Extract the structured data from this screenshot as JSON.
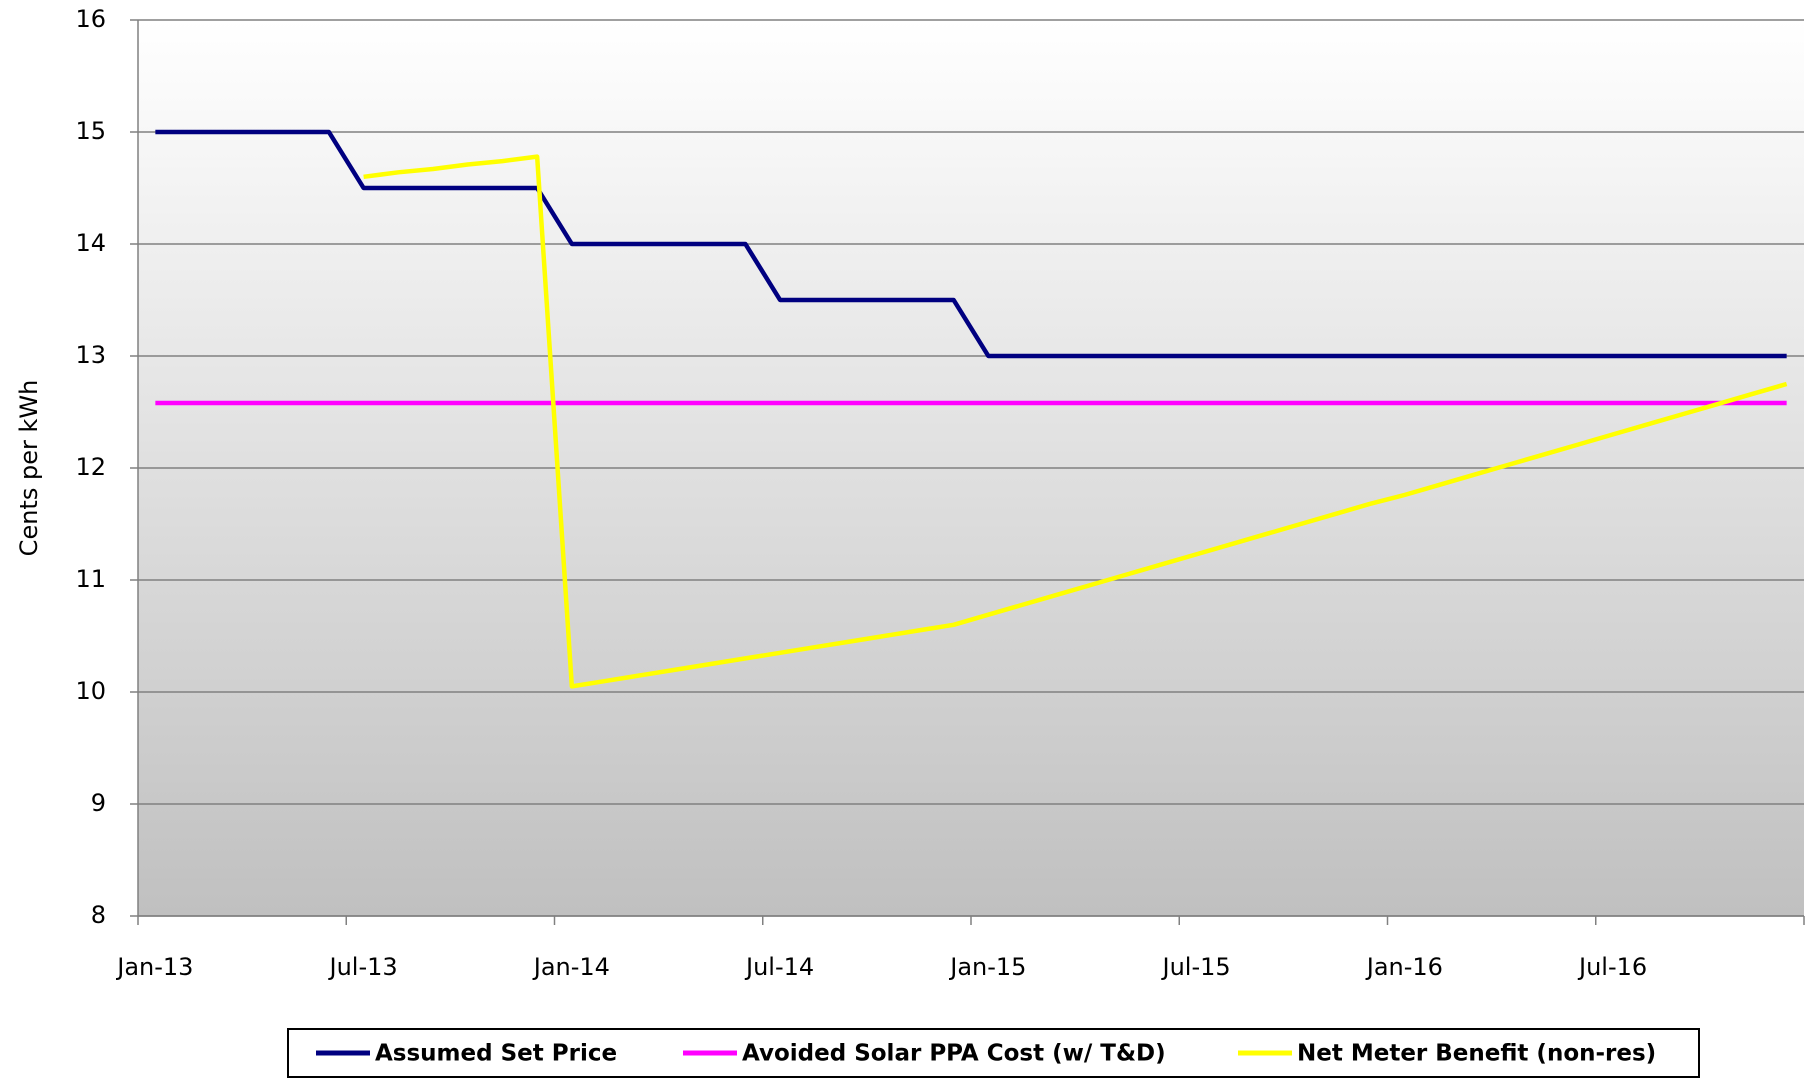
{
  "chart_data": {
    "type": "line",
    "y_label": "Cents per kWh",
    "categories": [
      "Jan-13",
      null,
      null,
      null,
      null,
      null,
      "Jul-13",
      null,
      null,
      null,
      null,
      null,
      "Jan-14",
      null,
      null,
      null,
      null,
      null,
      "Jul-14",
      null,
      null,
      null,
      null,
      null,
      "Jan-15",
      null,
      null,
      null,
      null,
      null,
      "Jul-15",
      null,
      null,
      null,
      null,
      null,
      "Jan-16",
      null,
      null,
      null,
      null,
      null,
      "Jul-16",
      null,
      null,
      null,
      null,
      null
    ],
    "series": [
      {
        "name": "Assumed Set Price",
        "color": "#000080",
        "values": [
          15,
          15,
          15,
          15,
          15,
          15,
          14.5,
          14.5,
          14.5,
          14.5,
          14.5,
          14.5,
          14,
          14,
          14,
          14,
          14,
          14,
          13.5,
          13.5,
          13.5,
          13.5,
          13.5,
          13.5,
          13,
          13,
          13,
          13,
          13,
          13,
          13,
          13,
          13,
          13,
          13,
          13,
          13,
          13,
          13,
          13,
          13,
          13,
          13,
          13,
          13,
          13,
          13,
          13
        ]
      },
      {
        "name": "Avoided Solar PPA Cost (w/ T&D)",
        "color": "#ff00ff",
        "values": [
          12.58,
          12.58,
          12.58,
          12.58,
          12.58,
          12.58,
          12.58,
          12.58,
          12.58,
          12.58,
          12.58,
          12.58,
          12.58,
          12.58,
          12.58,
          12.58,
          12.58,
          12.58,
          12.58,
          12.58,
          12.58,
          12.58,
          12.58,
          12.58,
          12.58,
          12.58,
          12.58,
          12.58,
          12.58,
          12.58,
          12.58,
          12.58,
          12.58,
          12.58,
          12.58,
          12.58,
          12.58,
          12.58,
          12.58,
          12.58,
          12.58,
          12.58,
          12.58,
          12.58,
          12.58,
          12.58,
          12.58,
          12.58
        ]
      },
      {
        "name": "Net Meter Benefit (non-res)",
        "color": "#ffff00",
        "values": [
          null,
          null,
          null,
          null,
          null,
          null,
          14.6,
          14.64,
          14.67,
          14.71,
          14.74,
          14.78,
          10.05,
          10.1,
          10.15,
          10.2,
          10.25,
          10.3,
          10.35,
          10.4,
          10.45,
          10.5,
          10.55,
          10.6,
          10.69,
          10.78,
          10.87,
          10.96,
          11.05,
          11.14,
          11.23,
          11.32,
          11.41,
          11.5,
          11.59,
          11.68,
          11.76,
          11.85,
          11.94,
          12.03,
          12.12,
          12.21,
          12.3,
          12.39,
          12.48,
          12.57,
          12.66,
          12.75
        ]
      }
    ],
    "ylim": [
      8,
      16
    ],
    "yticks": [
      8,
      9,
      10,
      11,
      12,
      13,
      14,
      15,
      16
    ],
    "grid": true
  }
}
